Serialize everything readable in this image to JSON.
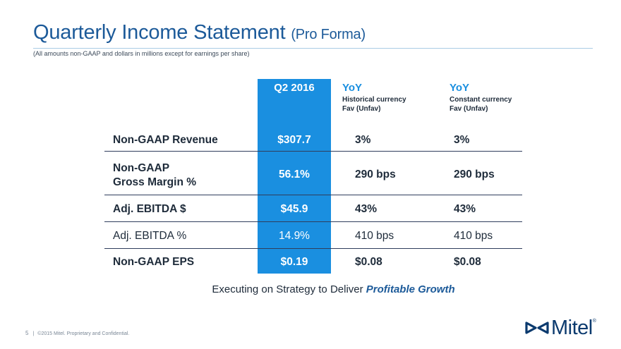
{
  "slide": {
    "title": "Quarterly Income Statement",
    "title_suffix": "(Pro Forma)",
    "note": "(All amounts non-GAAP and dollars in millions except for earnings per share)"
  },
  "table": {
    "headers": {
      "q2": "Q2 2016",
      "yoy_hist": {
        "title": "YoY",
        "line1": "Historical currency",
        "line2": "Fav (Unfav)"
      },
      "yoy_const": {
        "title": "YoY",
        "line1": "Constant currency",
        "line2": "Fav (Unfav)"
      }
    },
    "rows": [
      {
        "label": "Non-GAAP Revenue",
        "q2": "$307.7",
        "yoy_hist": "3%",
        "yoy_const": "3%"
      },
      {
        "label_line1": "Non-GAAP",
        "label_line2": "Gross Margin %",
        "q2": "56.1%",
        "yoy_hist": "290 bps",
        "yoy_const": "290 bps"
      },
      {
        "label": "Adj. EBITDA $",
        "q2": "$45.9",
        "yoy_hist": "43%",
        "yoy_const": "43%"
      },
      {
        "label": "Adj. EBITDA %",
        "q2": "14.9%",
        "yoy_hist": "410 bps",
        "yoy_const": "410 bps"
      },
      {
        "label": "Non-GAAP EPS",
        "q2": "$0.19",
        "yoy_hist": "$0.08",
        "yoy_const": "$0.08"
      }
    ]
  },
  "tagline": {
    "lead": "Executing on Strategy to Deliver",
    "emphasis": "Profitable Growth"
  },
  "footer": {
    "page": "5",
    "separator": "|",
    "copyright": "©2015 Mitel. Proprietary and Confidential."
  },
  "logo": {
    "text": "Mitel",
    "mark": "®"
  },
  "colors": {
    "title": "#1c5a99",
    "highlight": "#1a8fe0",
    "text": "#1e2b3a",
    "logo": "#0b3a6e"
  }
}
